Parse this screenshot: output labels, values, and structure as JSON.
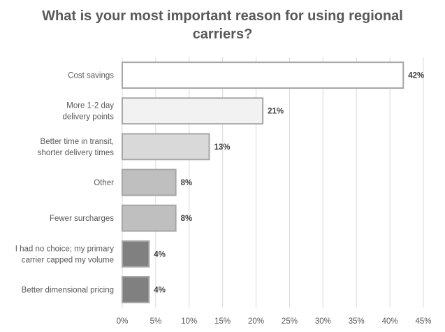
{
  "chart_data": {
    "type": "bar",
    "orientation": "horizontal",
    "title": [
      "What is your most important reason for using regional",
      "carriers?"
    ],
    "categories": [
      [
        "Cost savings"
      ],
      [
        "More 1-2 day",
        "delivery points"
      ],
      [
        "Better time in transit,",
        "shorter delivery times"
      ],
      [
        "Other"
      ],
      [
        "Fewer surcharges"
      ],
      [
        "I had no choice; my primary",
        "carrier capped my volume"
      ],
      [
        "Better dimensional pricing"
      ]
    ],
    "values": [
      42,
      21,
      13,
      8,
      8,
      4,
      4
    ],
    "data_labels": [
      "42%",
      "21%",
      "13%",
      "8%",
      "8%",
      "4%",
      "4%"
    ],
    "bar_colors": [
      "#ffffff",
      "#f2f2f2",
      "#d9d9d9",
      "#bfbfbf",
      "#bfbfbf",
      "#808080",
      "#808080"
    ],
    "xlim": [
      0,
      45
    ],
    "xticks": [
      0,
      5,
      10,
      15,
      20,
      25,
      30,
      35,
      40,
      45
    ],
    "xtick_labels": [
      "0%",
      "5%",
      "10%",
      "15%",
      "20%",
      "25%",
      "30%",
      "35%",
      "40%",
      "45%"
    ],
    "grid": true,
    "legend": "none"
  }
}
